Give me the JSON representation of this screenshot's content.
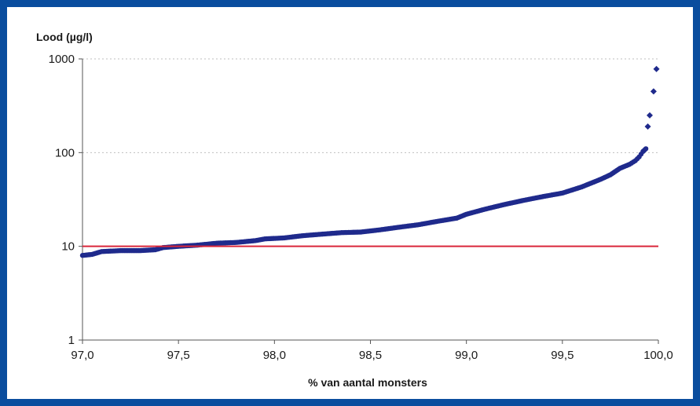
{
  "chart_data": {
    "type": "scatter",
    "title": "",
    "ylabel": "Lood (µg/l)",
    "xlabel": "% van aantal monsters",
    "x_ticks": [
      "97,0",
      "97,5",
      "98,0",
      "98,5",
      "99,0",
      "99,5",
      "100,0"
    ],
    "y_ticks": [
      "1",
      "10",
      "100",
      "1000"
    ],
    "xlim": [
      97.0,
      100.0
    ],
    "ylim": [
      1,
      1000
    ],
    "y_scale": "log",
    "grid": "horizontal dashed at 100 and 1000",
    "colors": {
      "points": "#1f2a8c",
      "threshold": "#d9263a",
      "frame": "#0a4d9e"
    },
    "threshold": {
      "y": 10
    },
    "series": [
      {
        "curve": [
          [
            97.0,
            8.0
          ],
          [
            97.05,
            8.2
          ],
          [
            97.1,
            8.8
          ],
          [
            97.2,
            9.0
          ],
          [
            97.3,
            9.0
          ],
          [
            97.38,
            9.2
          ],
          [
            97.42,
            9.7
          ],
          [
            97.5,
            10.0
          ],
          [
            97.6,
            10.3
          ],
          [
            97.7,
            10.8
          ],
          [
            97.8,
            11.0
          ],
          [
            97.9,
            11.5
          ],
          [
            97.95,
            12.0
          ],
          [
            98.05,
            12.3
          ],
          [
            98.15,
            13.0
          ],
          [
            98.25,
            13.5
          ],
          [
            98.35,
            14.0
          ],
          [
            98.45,
            14.2
          ],
          [
            98.55,
            15.0
          ],
          [
            98.65,
            16.0
          ],
          [
            98.75,
            17.0
          ],
          [
            98.85,
            18.5
          ],
          [
            98.95,
            20.0
          ],
          [
            99.0,
            22.0
          ],
          [
            99.1,
            25.0
          ],
          [
            99.2,
            28.0
          ],
          [
            99.3,
            31.0
          ],
          [
            99.4,
            34.0
          ],
          [
            99.5,
            37.0
          ],
          [
            99.6,
            43.0
          ],
          [
            99.7,
            52.0
          ],
          [
            99.75,
            58.0
          ],
          [
            99.8,
            68.0
          ],
          [
            99.85,
            75.0
          ],
          [
            99.88,
            82.0
          ],
          [
            99.9,
            90.0
          ],
          [
            99.92,
            103.0
          ],
          [
            99.935,
            110.0
          ]
        ],
        "extra_points": [
          [
            99.945,
            190
          ],
          [
            99.955,
            250
          ],
          [
            99.975,
            450
          ],
          [
            99.99,
            780
          ]
        ]
      }
    ]
  }
}
